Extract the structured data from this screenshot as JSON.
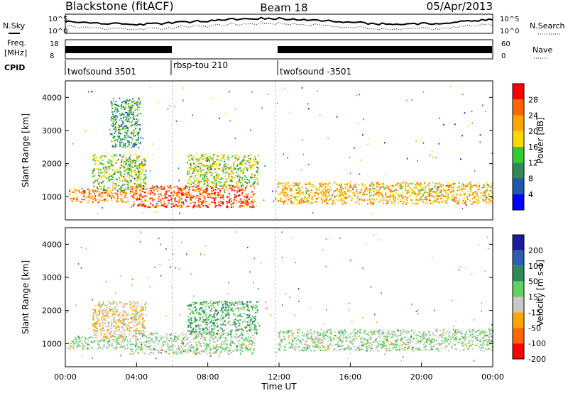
{
  "header": {
    "site": "Blackstone (fitACF)",
    "beam": "Beam 18",
    "date": "05/Apr/2013"
  },
  "status_panels": {
    "nsky_label": "N.Sky",
    "nsearch_label": "N.Search",
    "noise_ticks": [
      "10^5",
      "10^0"
    ],
    "freq_label_1": "Freq.",
    "freq_label_2": "[MHz]",
    "freq_ticks": [
      "18",
      "8"
    ],
    "nave_label": "Nave",
    "nave_ticks": [
      "60",
      "0"
    ],
    "cpid_label": "CPID"
  },
  "cpid_segments": [
    {
      "label": "twofsound 3501",
      "start_hour": 0,
      "end_hour": 6.0
    },
    {
      "label": "rbsp-tou 210",
      "start_hour": 6.0,
      "end_hour": 11.8
    },
    {
      "label": "twofsound -3501",
      "start_hour": 11.8,
      "end_hour": 24
    }
  ],
  "colors": {
    "power": [
      "#0000ff",
      "#1e5aa8",
      "#2e8b57",
      "#32cd32",
      "#ffd700",
      "#ffa500",
      "#ff6600",
      "#ff0000"
    ],
    "velocity": [
      "#1a1aa0",
      "#2b5fb0",
      "#2e8b57",
      "#5fd35f",
      "#c8c8c8",
      "#ffa500",
      "#ff6600",
      "#ff0000"
    ]
  },
  "chart_data": [
    {
      "type": "heatmap",
      "title": "Power",
      "xlabel": "",
      "ylabel": "Slant Range [km]",
      "xlim": [
        0,
        24
      ],
      "ylim": [
        300,
        4500
      ],
      "y_ticks": [
        "1000",
        "2000",
        "3000",
        "4000"
      ],
      "colorbar": {
        "label": "Power [dB]",
        "ticks": [
          "4",
          "8",
          "12",
          "16",
          "20",
          "24",
          "28"
        ],
        "range": [
          0,
          30
        ]
      },
      "features": [
        {
          "t_start": 0.2,
          "t_end": 3.5,
          "r_low": 850,
          "r_high": 1250,
          "value": 22
        },
        {
          "t_start": 1.5,
          "t_end": 4.5,
          "r_low": 1200,
          "r_high": 2300,
          "value": 14
        },
        {
          "t_start": 2.5,
          "t_end": 4.2,
          "r_low": 2500,
          "r_high": 4000,
          "value": 10
        },
        {
          "t_start": 3.6,
          "t_end": 10.6,
          "r_low": 700,
          "r_high": 1350,
          "value": 25
        },
        {
          "t_start": 6.8,
          "t_end": 10.8,
          "r_low": 1300,
          "r_high": 2300,
          "value": 15
        },
        {
          "t_start": 11.9,
          "t_end": 24,
          "r_low": 800,
          "r_high": 1450,
          "value": 20
        }
      ]
    },
    {
      "type": "heatmap",
      "title": "Velocity",
      "xlabel": "Time UT",
      "ylabel": "Slant Range [km]",
      "xlim": [
        0,
        24
      ],
      "ylim": [
        300,
        4500
      ],
      "x_ticks": [
        "00:00",
        "04:00",
        "08:00",
        "12:00",
        "16:00",
        "20:00",
        "00:00"
      ],
      "y_ticks": [
        "1000",
        "2000",
        "3000",
        "4000"
      ],
      "colorbar": {
        "label": "Velocity [m s-1]",
        "ticks": [
          "200",
          "100",
          "50",
          "15",
          "-15",
          "-50",
          "-100",
          "-200"
        ],
        "range": [
          -250,
          250
        ]
      },
      "features": [
        {
          "t_start": 0.2,
          "t_end": 3.5,
          "r_low": 850,
          "r_high": 1250,
          "value": 0
        },
        {
          "t_start": 1.5,
          "t_end": 4.5,
          "r_low": 1200,
          "r_high": 2300,
          "value": -60
        },
        {
          "t_start": 3.6,
          "t_end": 10.6,
          "r_low": 700,
          "r_high": 1350,
          "value": 0
        },
        {
          "t_start": 6.8,
          "t_end": 10.8,
          "r_low": 1300,
          "r_high": 2300,
          "value": 60
        },
        {
          "t_start": 11.9,
          "t_end": 24,
          "r_low": 800,
          "r_high": 1450,
          "value": 0
        }
      ]
    }
  ]
}
